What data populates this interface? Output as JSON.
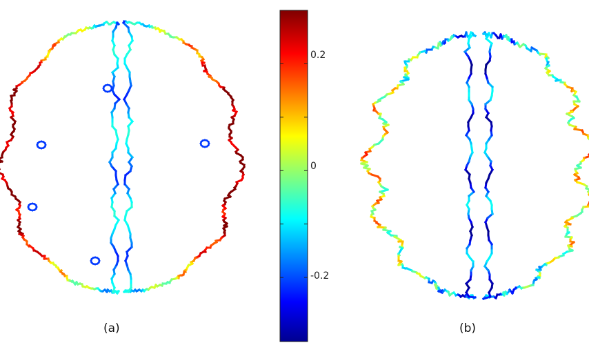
{
  "panels": [
    {
      "id": "a",
      "label": "(a)",
      "description_name": "brain-contour-a"
    },
    {
      "id": "b",
      "label": "(b)",
      "description_name": "brain-contour-b"
    }
  ],
  "colorbar": {
    "ticks": [
      {
        "value": 0.2,
        "label": "0.2"
      },
      {
        "value": 0,
        "label": "0"
      },
      {
        "value": -0.2,
        "label": "-0.2"
      }
    ],
    "range": [
      -0.32,
      0.3
    ],
    "minor_ticks": [
      0.1,
      -0.1
    ],
    "colormap": "jet",
    "colors": [
      "#00008f",
      "#0000ff",
      "#00ffff",
      "#ffff00",
      "#ff0000",
      "#800000"
    ]
  }
}
